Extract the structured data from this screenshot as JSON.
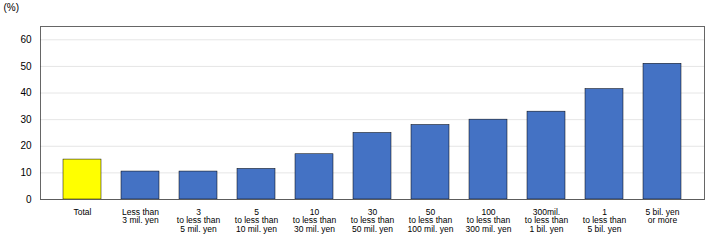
{
  "chart_data": {
    "type": "bar",
    "ylabel": "(%)",
    "categories": [
      "Total",
      "Less than\n3 mil. yen",
      "3\nto less than\n5 mil. yen",
      "5\nto less than\n10 mil. yen",
      "10\nto less than\n30 mil. yen",
      "30\nto less than\n50 mil. yen",
      "50\nto less than\n100 mil. yen",
      "100\nto less than\n300 mil. yen",
      "300mil.\nto less than\n1 bil. yen",
      "1\nto less than\n5 bil. yen",
      "5 bil. yen\nor more"
    ],
    "values": [
      15.0,
      10.5,
      10.5,
      11.5,
      17.0,
      25.0,
      28.0,
      30.0,
      33.0,
      41.5,
      51.0
    ],
    "colors": [
      "#FFFF00",
      "#4472C4",
      "#4472C4",
      "#4472C4",
      "#4472C4",
      "#4472C4",
      "#4472C4",
      "#4472C4",
      "#4472C4",
      "#4472C4",
      "#4472C4"
    ],
    "ylim": [
      0,
      65
    ],
    "yticks": [
      0,
      10,
      20,
      30,
      40,
      50,
      60
    ],
    "grid": true
  }
}
